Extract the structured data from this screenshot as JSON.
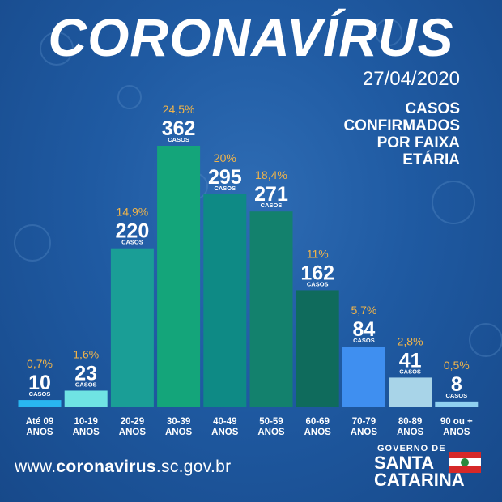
{
  "header": {
    "title": "CORONAVÍRUS",
    "date": "27/04/2020",
    "subtitle": "CASOS\nCONFIRMADOS\nPOR FAIXA\nETÁRIA"
  },
  "footer": {
    "url_prefix": "www.",
    "url_domain": "coronavirus",
    "url_suffix": ".sc.gov.br",
    "logo_line1": "GOVERNO DE",
    "logo_line2": "SANTA",
    "logo_line3": "CATARINA"
  },
  "colors": {
    "background": "#1f5aa2",
    "percent_text": "#f0b44a",
    "value_text": "#ffffff"
  },
  "chart_data": {
    "type": "bar",
    "title": "CASOS CONFIRMADOS POR FAIXA ETÁRIA",
    "value_unit_label": "CASOS",
    "categories": [
      [
        "Até 09",
        "ANOS"
      ],
      [
        "10-19",
        "ANOS"
      ],
      [
        "20-29",
        "ANOS"
      ],
      [
        "30-39",
        "ANOS"
      ],
      [
        "40-49",
        "ANOS"
      ],
      [
        "50-59",
        "ANOS"
      ],
      [
        "60-69",
        "ANOS"
      ],
      [
        "70-79",
        "ANOS"
      ],
      [
        "80-89",
        "ANOS"
      ],
      [
        "90 ou +",
        "ANOS"
      ]
    ],
    "values": [
      10,
      23,
      220,
      362,
      295,
      271,
      162,
      84,
      41,
      8
    ],
    "percentages": [
      "0,7%",
      "1,6%",
      "14,9%",
      "24,5%",
      "20%",
      "18,4%",
      "11%",
      "5,7%",
      "2,8%",
      "0,5%"
    ],
    "bar_colors": [
      "#29b6f0",
      "#6fe3e3",
      "#1a9e96",
      "#14a57a",
      "#0e8a85",
      "#13816d",
      "#0f6b5c",
      "#3f8ff0",
      "#a8d4e8",
      "#8fd0f0"
    ],
    "ylim": [
      0,
      362
    ],
    "grid": false,
    "legend": "none"
  }
}
